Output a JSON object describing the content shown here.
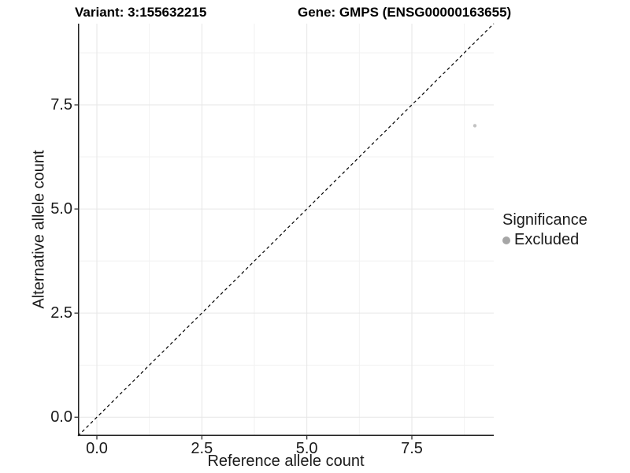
{
  "chart_data": {
    "type": "scatter",
    "titles": {
      "left": "Variant: 3:155632215",
      "right": "Gene: GMPS (ENSG00000163655)"
    },
    "xlabel": "Reference allele count",
    "ylabel": "Alternative allele count",
    "xlim": [
      -0.45,
      9.45
    ],
    "ylim": [
      -0.45,
      9.45
    ],
    "x_ticks": [
      {
        "value": 0.0,
        "label": "0.0"
      },
      {
        "value": 2.5,
        "label": "2.5"
      },
      {
        "value": 5.0,
        "label": "5.0"
      },
      {
        "value": 7.5,
        "label": "7.5"
      }
    ],
    "y_ticks": [
      {
        "value": 0.0,
        "label": "0.0"
      },
      {
        "value": 2.5,
        "label": "2.5"
      },
      {
        "value": 5.0,
        "label": "5.0"
      },
      {
        "value": 7.5,
        "label": "7.5"
      }
    ],
    "x_minor": [
      1.25,
      3.75,
      6.25,
      8.75
    ],
    "y_minor": [
      1.25,
      3.75,
      6.25,
      8.75
    ],
    "grid": {
      "major_color": "#e6e6e6",
      "minor_color": "#f2f2f2"
    },
    "identity_line": {
      "from": -0.45,
      "to": 9.45,
      "style": "dashed",
      "color": "#000000"
    },
    "points": [
      {
        "x": 9,
        "y": 7,
        "significance": "Excluded",
        "color": "#c2c2c2",
        "radius": 2.2
      }
    ],
    "legend": {
      "title": "Significance",
      "position": "right",
      "entries": [
        {
          "label": "Excluded",
          "color": "#a6a6a6",
          "marker": "circle"
        }
      ]
    },
    "axis_color": "#222222"
  }
}
